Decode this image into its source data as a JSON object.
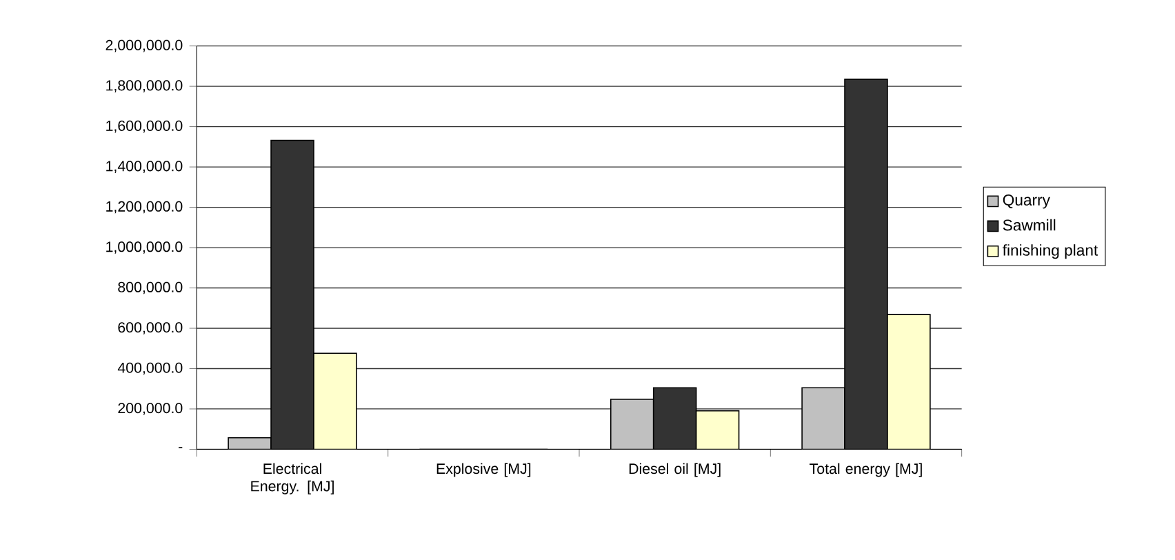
{
  "chart_data": {
    "type": "bar",
    "categories": [
      "Electrical Energy. [MJ]",
      "Explosive [MJ]",
      "Diesel oil  [MJ]",
      "Total energy [MJ]"
    ],
    "series": [
      {
        "name": "Quarry",
        "color": "#c0c0c0",
        "values": [
          57000,
          0,
          248000,
          305000
        ]
      },
      {
        "name": "Sawmill",
        "color": "#333333",
        "values": [
          1532000,
          0,
          305000,
          1835000
        ]
      },
      {
        "name": "finishing plant",
        "color": "#ffffcc",
        "values": [
          476000,
          0,
          191000,
          668000
        ]
      }
    ],
    "ylim": [
      0,
      2000000
    ],
    "yticks": [
      {
        "value": 0,
        "label": "-"
      },
      {
        "value": 200000,
        "label": "200,000.0"
      },
      {
        "value": 400000,
        "label": "400,000.0"
      },
      {
        "value": 600000,
        "label": "600,000.0"
      },
      {
        "value": 800000,
        "label": "800,000.0"
      },
      {
        "value": 1000000,
        "label": "1,000,000.0"
      },
      {
        "value": 1200000,
        "label": "1,200,000.0"
      },
      {
        "value": 1400000,
        "label": "1,400,000.0"
      },
      {
        "value": 1600000,
        "label": "1,600,000.0"
      },
      {
        "value": 1800000,
        "label": "1,800,000.0"
      },
      {
        "value": 2000000,
        "label": "2,000,000.0"
      }
    ],
    "grid": "y",
    "legend": "right"
  }
}
